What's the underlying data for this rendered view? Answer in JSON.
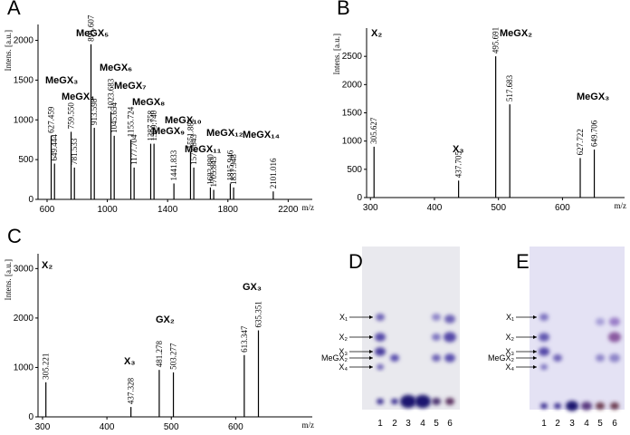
{
  "chart_data": [
    {
      "type": "spectrum",
      "label": "A",
      "ylabel": "Intens. [a.u.]",
      "xlabel": "m/z",
      "color": "#000000",
      "xlim": [
        540,
        2360
      ],
      "xticks": [
        600,
        1000,
        1400,
        1800,
        2200
      ],
      "ylim": [
        0,
        2200
      ],
      "yticks": [
        0,
        500,
        1000,
        1500,
        2000
      ],
      "x": [
        627.459,
        649.444,
        759.55,
        781.533,
        891.607,
        913.598,
        1023.683,
        1045.654,
        1155.724,
        1177.704,
        1287.758,
        1309.74,
        1441.833,
        1551.882,
        1573.843,
        1683.88,
        1705.843,
        1815.946,
        1837.948,
        2101.016
      ],
      "x_labels": [
        "627.459",
        "649.444",
        "759.550",
        "781.533",
        "891.607",
        "913.598",
        "1023.683",
        "1045.654",
        "1155.724",
        "1177.704",
        "1287.758",
        "1309.740",
        "1441.833",
        "1551.882",
        "1573.843",
        "1683.880",
        "1705.843",
        "1815.946",
        "1837.948",
        "2101.016"
      ],
      "values": [
        800,
        450,
        850,
        400,
        1950,
        900,
        1100,
        800,
        750,
        400,
        700,
        700,
        200,
        600,
        400,
        150,
        120,
        200,
        150,
        100
      ],
      "annotations": [
        "MeGX₃",
        "MeGX₄",
        "MeGX₅",
        "MeGX₆",
        "MeGX₇",
        "MeGX₈",
        "MeGX₉",
        "MeGX₁₀",
        "MeGX₁₁",
        "MeGX₁₂",
        "MeGX₁₄"
      ]
    },
    {
      "type": "spectrum",
      "label": "B",
      "ylabel": "Intens. [a.u.]",
      "xlabel": "m/z",
      "color": "#000000",
      "xlim": [
        294,
        697
      ],
      "xticks": [
        300,
        400,
        500,
        600
      ],
      "ylim": [
        0,
        3000
      ],
      "yticks": [
        0,
        500,
        1000,
        1500,
        2000,
        2500
      ],
      "x": [
        305.627,
        437.705,
        495.691,
        517.683,
        627.722,
        649.706
      ],
      "values": [
        900,
        300,
        2500,
        1650,
        700,
        850
      ],
      "annotations": [
        "X₂",
        "X₃",
        "MeGX₂",
        "MeGX₃"
      ]
    },
    {
      "type": "spectrum",
      "label": "C",
      "ylabel": "Intens. [a.u.]",
      "xlabel": "m/z",
      "color": "#000000",
      "xlim": [
        293,
        719
      ],
      "xticks": [
        300,
        400,
        500,
        600
      ],
      "ylim": [
        0,
        3300
      ],
      "yticks": [
        0,
        1000,
        2000,
        3000
      ],
      "x": [
        305.221,
        437.328,
        481.278,
        503.277,
        613.347,
        635.351
      ],
      "values": [
        700,
        200,
        950,
        900,
        1250,
        1750
      ],
      "annotations": [
        "X₂",
        "X₃",
        "GX₂",
        "GX₃"
      ]
    }
  ],
  "tlc_panels": [
    {
      "label": "D",
      "lanes": [
        "1",
        "2",
        "3",
        "4",
        "5",
        "6"
      ],
      "markers": [
        "X₁",
        "X₂",
        "X₃",
        "MeGX₂",
        "X₄"
      ]
    },
    {
      "label": "E",
      "lanes": [
        "1",
        "2",
        "3",
        "4",
        "5",
        "6"
      ],
      "markers": [
        "X₁",
        "X₂",
        "X₃",
        "MeGX₂",
        "X₄"
      ]
    }
  ]
}
